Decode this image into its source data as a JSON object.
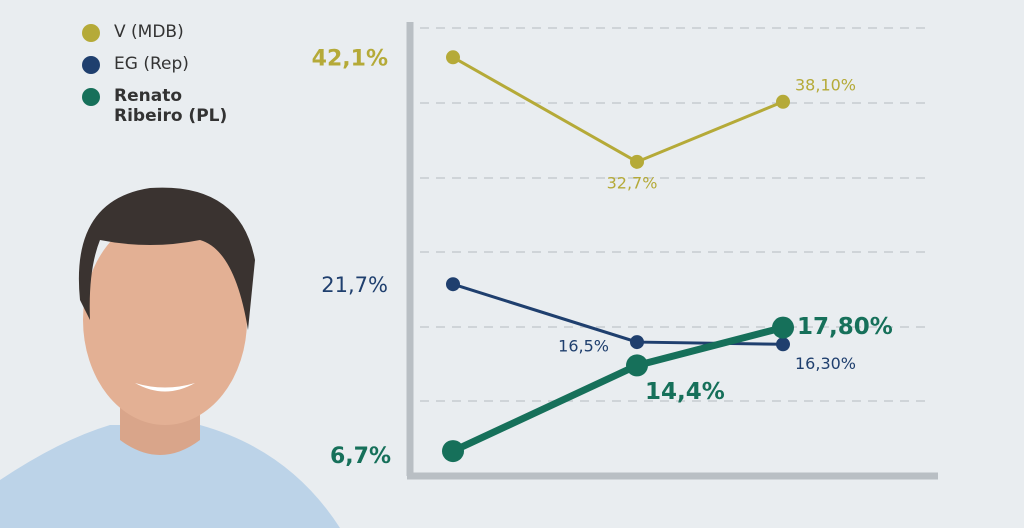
{
  "chart_data": {
    "type": "line",
    "categories": [
      null,
      null,
      null
    ],
    "ylim": [
      5,
      45
    ],
    "series": [
      {
        "name": "V (MDB)",
        "color": "#b5aa38",
        "values": [
          42.1,
          32.7,
          38.1
        ],
        "value_labels": [
          "42,1%",
          "32,7%",
          "38,10%"
        ]
      },
      {
        "name": "EG (Rep)",
        "color": "#1f3f6e",
        "values": [
          21.7,
          16.5,
          16.3
        ],
        "value_labels": [
          "21,7%",
          "16,5%",
          "16,30%"
        ]
      },
      {
        "name": "Renato Ribeiro (PL)",
        "color": "#16705a",
        "values": [
          6.7,
          14.4,
          17.8
        ],
        "value_labels": [
          "6,7%",
          "14,4%",
          "17,80%"
        ]
      }
    ]
  }
}
